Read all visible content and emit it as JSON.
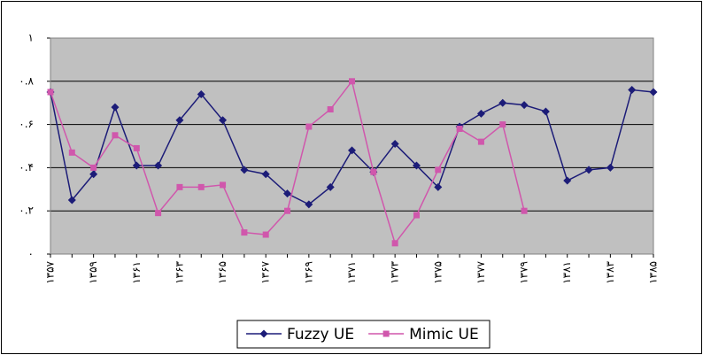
{
  "chart_data": {
    "type": "line",
    "categories": [
      "۱۳۵۷",
      null,
      "۱۳۵۹",
      null,
      "۱۳۶۱",
      null,
      "۱۳۶۳",
      null,
      "۱۳۶۵",
      null,
      "۱۳۶۷",
      null,
      "۱۳۶۹",
      null,
      "۱۳۷۱",
      null,
      "۱۳۷۳",
      null,
      "۱۳۷۵",
      null,
      "۱۳۷۷",
      null,
      "۱۳۷۹",
      null,
      "۱۳۸۱",
      null,
      "۱۳۸۳",
      null,
      "۱۳۸۵"
    ],
    "series": [
      {
        "name": "Fuzzy UE",
        "color": "#1c1c78",
        "marker": "diamond",
        "values": [
          0.75,
          0.25,
          0.37,
          0.68,
          0.41,
          0.41,
          0.62,
          0.74,
          0.62,
          0.39,
          0.37,
          0.28,
          0.23,
          0.31,
          0.48,
          0.38,
          0.51,
          0.41,
          0.31,
          0.59,
          0.65,
          0.7,
          0.69,
          0.66,
          0.34,
          0.39,
          0.4,
          0.76,
          0.75
        ]
      },
      {
        "name": "Mimic UE",
        "color": "#d057ac",
        "marker": "square",
        "values": [
          0.75,
          0.47,
          0.4,
          0.55,
          0.49,
          0.19,
          0.31,
          0.31,
          0.32,
          0.1,
          0.09,
          0.2,
          0.59,
          0.67,
          0.8,
          0.38,
          0.05,
          0.18,
          0.39,
          0.58,
          0.52,
          0.6,
          0.2,
          null,
          null,
          null,
          null,
          null,
          null
        ]
      }
    ],
    "ylim": [
      0,
      1
    ],
    "yticks": [
      {
        "value": 0,
        "label": "۰"
      },
      {
        "value": 0.2,
        "label": "۰.۲"
      },
      {
        "value": 0.4,
        "label": "۰.۴"
      },
      {
        "value": 0.6,
        "label": "۰.۶"
      },
      {
        "value": 0.8,
        "label": "۰.۸"
      },
      {
        "value": 1,
        "label": "۱"
      }
    ],
    "grid": true,
    "legend": "bottom"
  }
}
